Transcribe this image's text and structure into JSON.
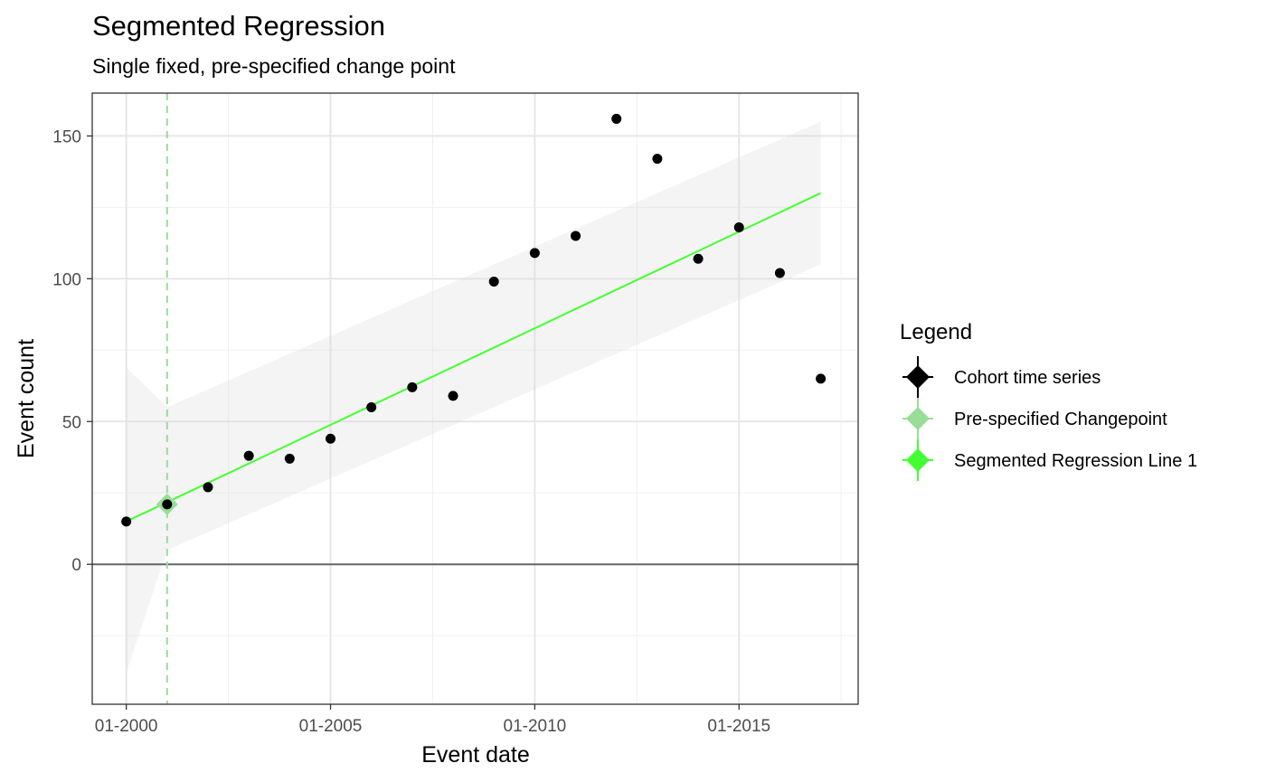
{
  "chart_data": {
    "type": "line",
    "title": "Segmented Regression",
    "subtitle": "Single fixed, pre-specified change point",
    "xlabel": "Event date",
    "ylabel": "Event count",
    "xlim": [
      "1999-03",
      "2017-12"
    ],
    "ylim": [
      -49,
      165
    ],
    "x_ticks": [
      "01-2000",
      "01-2005",
      "01-2010",
      "01-2015"
    ],
    "y_ticks": [
      0,
      50,
      100,
      150
    ],
    "grid": true,
    "zero_line": true,
    "series": [
      {
        "name": "Cohort time series",
        "kind": "scatter",
        "color": "#000000",
        "x": [
          "01-2000",
          "01-2001",
          "01-2002",
          "01-2003",
          "01-2004",
          "01-2005",
          "01-2006",
          "01-2007",
          "01-2008",
          "01-2009",
          "01-2010",
          "01-2011",
          "01-2012",
          "01-2013",
          "01-2014",
          "01-2015",
          "01-2016",
          "01-2017"
        ],
        "y": [
          15,
          21,
          27,
          38,
          37,
          44,
          55,
          62,
          59,
          99,
          109,
          115,
          156,
          142,
          107,
          118,
          102,
          65
        ]
      },
      {
        "name": "Segmented Regression Line 1",
        "kind": "line",
        "color": "#44ff33",
        "x": [
          "01-2000",
          "01-2017"
        ],
        "y": [
          15,
          130
        ],
        "ci_lower": [
          -38,
          105
        ],
        "ci_upper": [
          69,
          155
        ],
        "ci_x": [
          "01-2000",
          "01-2001",
          "01-2017"
        ],
        "ci_lower_pts": [
          -38,
          5,
          105
        ],
        "ci_upper_pts": [
          69,
          55,
          155
        ]
      },
      {
        "name": "Pre-specified Changepoint",
        "kind": "vline",
        "color": "#99dd99",
        "x": "01-2001",
        "marker_y": 21
      }
    ],
    "legend": {
      "title": "Legend",
      "placement": "right",
      "entries": [
        {
          "label": "Cohort time series",
          "color": "#000000"
        },
        {
          "label": "Pre-specified Changepoint",
          "color": "#99dd99"
        },
        {
          "label": "Segmented Regression Line 1",
          "color": "#44ff33"
        }
      ]
    }
  }
}
